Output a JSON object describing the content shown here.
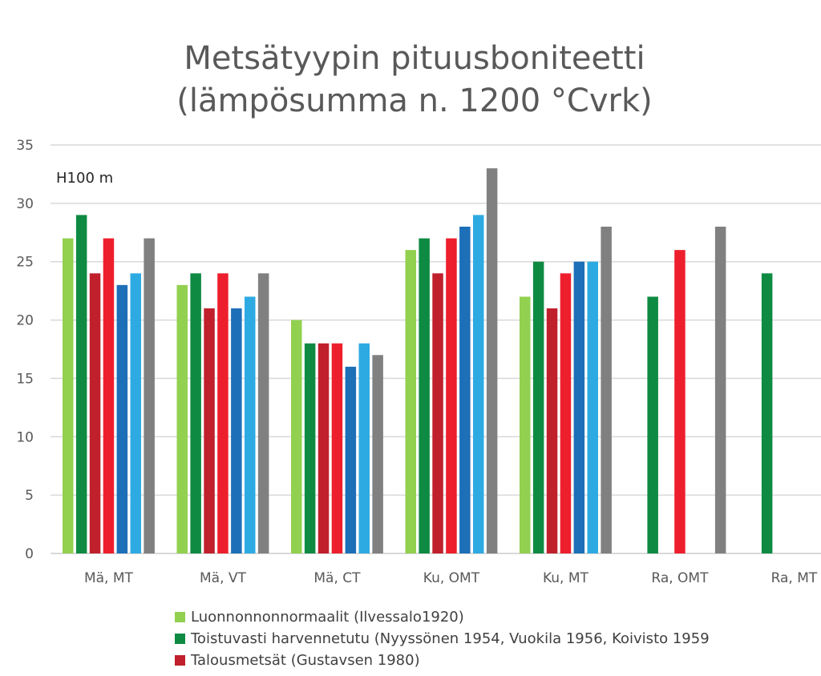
{
  "chart_data": {
    "type": "bar",
    "title_lines": [
      "Metsätyypin pituusboniteetti",
      "(lämpösumma n. 1200 °Cvrk)"
    ],
    "ylabel": "H100 m",
    "ylim": [
      0,
      35
    ],
    "yticks": [
      0,
      5,
      10,
      15,
      20,
      25,
      30,
      35
    ],
    "grid": true,
    "legend_position": "bottom",
    "categories": [
      "Mä, MT",
      "Mä, VT",
      "Mä, CT",
      "Ku, OMT",
      "Ku, MT",
      "Ra, OMT",
      "Ra, MT"
    ],
    "series": [
      {
        "name": "Luonnonnonnormaalit (Ilvessalo1920)",
        "color": "#92d050",
        "values": [
          27,
          23,
          20,
          26,
          22,
          null,
          null
        ]
      },
      {
        "name": "Toistuvasti harvennetutu (Nyyssönen 1954, Vuokila 1956, Koivisto 1959",
        "color": "#0e8a43",
        "values": [
          29,
          24,
          18,
          27,
          25,
          22,
          24
        ]
      },
      {
        "name": "Talousmetsät (Gustavsen 1980)",
        "color": "#c0202c",
        "values": [
          24,
          21,
          18,
          24,
          21,
          null,
          null
        ]
      },
      {
        "color": "#ee1f2d",
        "values": [
          27,
          24,
          18,
          27,
          24,
          26,
          null
        ]
      },
      {
        "color": "#1d6fb8",
        "values": [
          23,
          21,
          16,
          28,
          25,
          null,
          null
        ]
      },
      {
        "color": "#2eaae2",
        "values": [
          24,
          22,
          18,
          29,
          25,
          null,
          null
        ]
      },
      {
        "color": "#808080",
        "values": [
          27,
          24,
          17,
          33,
          28,
          28,
          null
        ]
      }
    ]
  }
}
